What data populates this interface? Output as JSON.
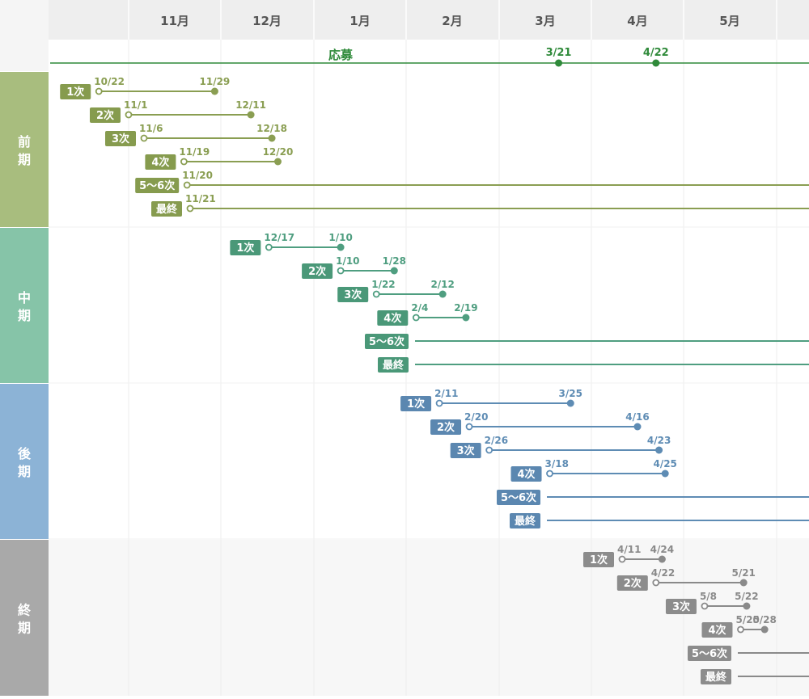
{
  "header": {
    "months": [
      "11月",
      "12月",
      "1月",
      "2月",
      "3月",
      "4月",
      "5月"
    ]
  },
  "application": {
    "label": "応募",
    "start_date": "3/21",
    "end_date": "4/22",
    "color": "#2f8a3a"
  },
  "sections": [
    {
      "id": "zenki",
      "name": "前期",
      "color": "#a8bd7e",
      "accent": "#8a9e52",
      "badge_color": "#869b4e",
      "rows": [
        {
          "badge": "1次",
          "start": "10/22",
          "end": "11/29",
          "open": false
        },
        {
          "badge": "2次",
          "start": "11/1",
          "end": "12/11",
          "open": false
        },
        {
          "badge": "3次",
          "start": "11/6",
          "end": "12/18",
          "open": false
        },
        {
          "badge": "4次",
          "start": "11/19",
          "end": "12/20",
          "open": false
        },
        {
          "badge": "5〜6次",
          "start": "11/20",
          "end": "",
          "open": true
        },
        {
          "badge": "最終",
          "start": "11/21",
          "end": "",
          "open": true
        }
      ]
    },
    {
      "id": "chuki",
      "name": "中期",
      "color": "#86c4a8",
      "accent": "#4f9e80",
      "badge_color": "#4a9878",
      "rows": [
        {
          "badge": "1次",
          "start": "12/17",
          "end": "1/10",
          "open": false
        },
        {
          "badge": "2次",
          "start": "1/10",
          "end": "1/28",
          "open": false
        },
        {
          "badge": "3次",
          "start": "1/22",
          "end": "2/12",
          "open": false
        },
        {
          "badge": "4次",
          "start": "2/4",
          "end": "2/19",
          "open": false
        },
        {
          "badge": "5〜6次",
          "start": "",
          "end": "",
          "open": true
        },
        {
          "badge": "最終",
          "start": "",
          "end": "",
          "open": true
        }
      ]
    },
    {
      "id": "koki",
      "name": "後期",
      "color": "#8cb3d6",
      "accent": "#5e8cb4",
      "badge_color": "#5b87b0",
      "rows": [
        {
          "badge": "1次",
          "start": "2/11",
          "end": "3/25",
          "open": false
        },
        {
          "badge": "2次",
          "start": "2/20",
          "end": "4/16",
          "open": false
        },
        {
          "badge": "3次",
          "start": "2/26",
          "end": "4/23",
          "open": false
        },
        {
          "badge": "4次",
          "start": "3/18",
          "end": "4/25",
          "open": false
        },
        {
          "badge": "5〜6次",
          "start": "",
          "end": "",
          "open": true
        },
        {
          "badge": "最終",
          "start": "",
          "end": "",
          "open": true
        }
      ]
    },
    {
      "id": "shuki",
      "name": "終期",
      "color": "#a9a9a9",
      "accent": "#8a8a8a",
      "badge_color": "#8c8c8c",
      "rows": [
        {
          "badge": "1次",
          "start": "4/11",
          "end": "4/24",
          "open": false
        },
        {
          "badge": "2次",
          "start": "4/22",
          "end": "5/21",
          "open": false
        },
        {
          "badge": "3次",
          "start": "5/8",
          "end": "5/22",
          "open": false
        },
        {
          "badge": "4次",
          "start": "5/20",
          "end": "5/28",
          "open": false
        },
        {
          "badge": "5〜6次",
          "start": "",
          "end": "",
          "open": true
        },
        {
          "badge": "最終",
          "start": "",
          "end": "",
          "open": true
        }
      ]
    }
  ]
}
